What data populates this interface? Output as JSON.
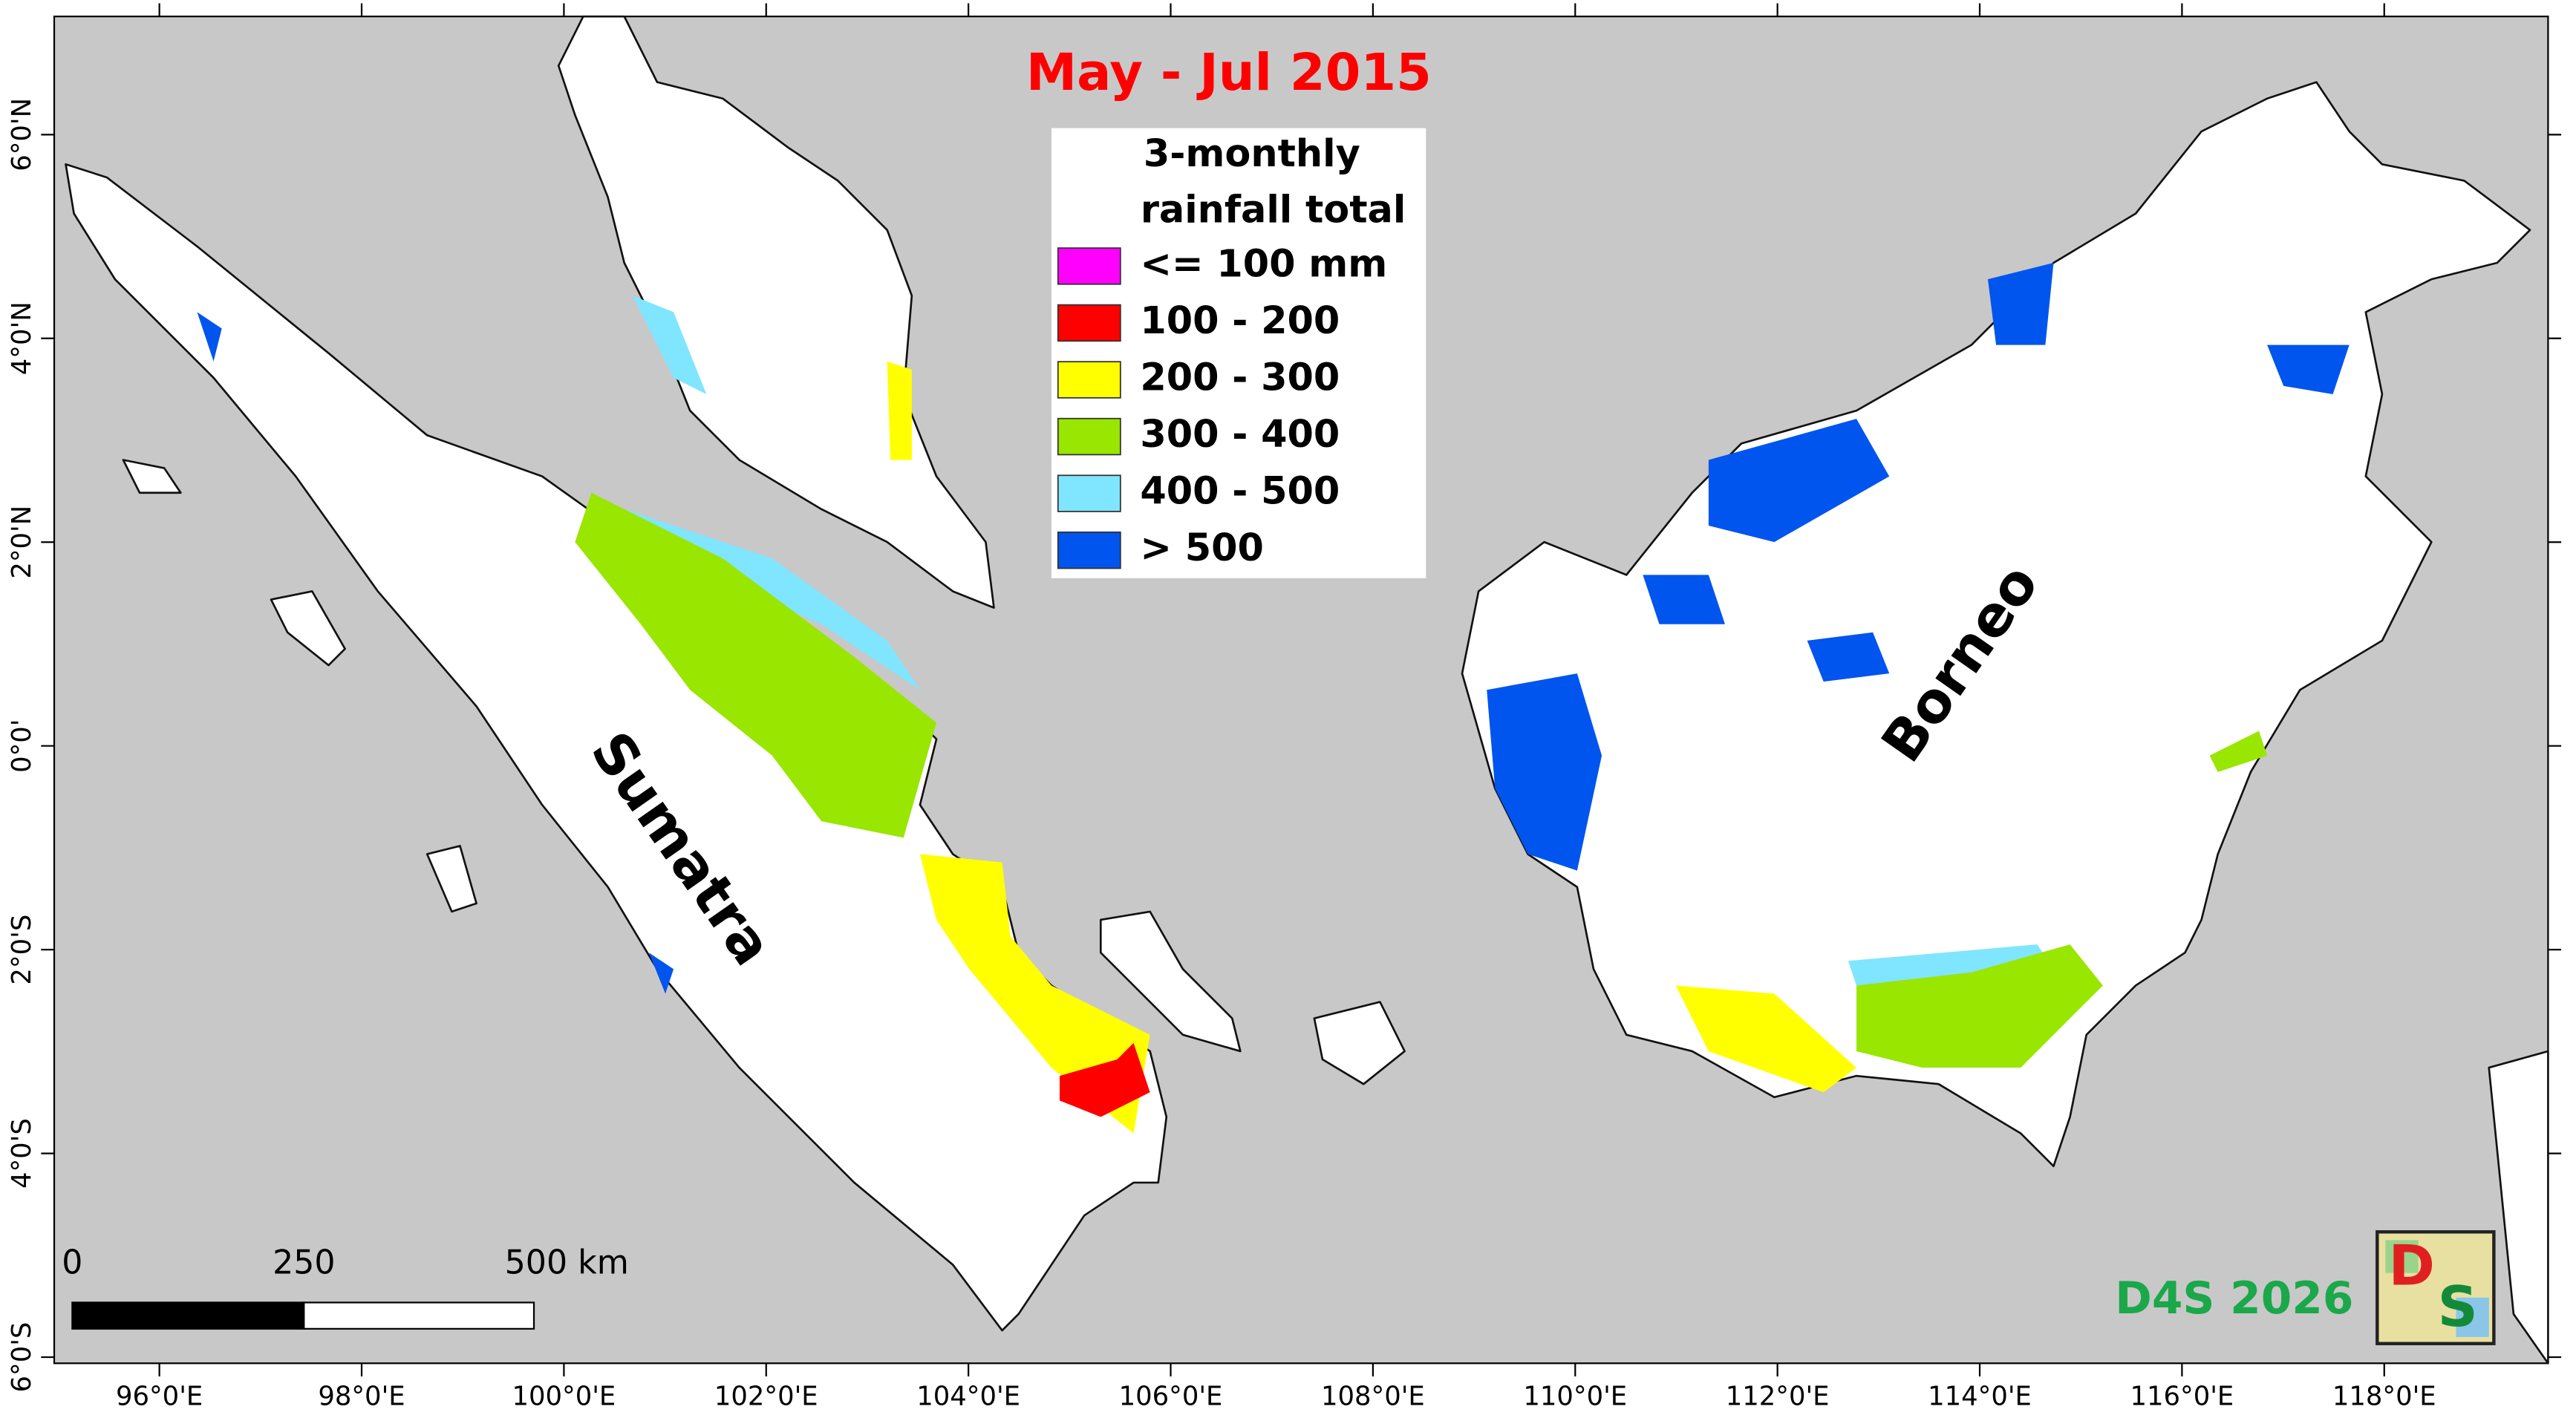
{
  "title": "May - Jul 2015",
  "legend": {
    "title": [
      "3-monthly",
      "rainfall total"
    ],
    "items": [
      {
        "label": "<= 100 mm",
        "color": "#ff00ff"
      },
      {
        "label": "100 - 200",
        "color": "#ff0000"
      },
      {
        "label": "200 - 300",
        "color": "#ffff00"
      },
      {
        "label": "300 - 400",
        "color": "#99e600"
      },
      {
        "label": "400 - 500",
        "color": "#80e5ff"
      },
      {
        "label": "> 500",
        "color": "#0055ee"
      }
    ]
  },
  "labels": {
    "sumatra": "Sumatra",
    "borneo": "Borneo"
  },
  "scale_bar": {
    "labels": [
      "0",
      "250",
      "500 km"
    ]
  },
  "credit": "D4S 2026",
  "logo": {
    "letters": [
      "D",
      "S"
    ]
  },
  "map": {
    "lon_lim": [
      94.96,
      119.62
    ],
    "lat_lim": [
      7.16,
      -6.06
    ],
    "lon_ticks": [
      {
        "value": 96,
        "label": "96°0'E"
      },
      {
        "value": 98,
        "label": "98°0'E"
      },
      {
        "value": 100,
        "label": "100°0'E"
      },
      {
        "value": 102,
        "label": "102°0'E"
      },
      {
        "value": 104,
        "label": "104°0'E"
      },
      {
        "value": 106,
        "label": "106°0'E"
      },
      {
        "value": 108,
        "label": "108°0'E"
      },
      {
        "value": 110,
        "label": "110°0'E"
      },
      {
        "value": 112,
        "label": "112°0'E"
      },
      {
        "value": 114,
        "label": "114°0'E"
      },
      {
        "value": 116,
        "label": "116°0'E"
      },
      {
        "value": 118,
        "label": "118°0'E"
      }
    ],
    "lat_ticks": [
      {
        "value": 6,
        "label": "6°0'N"
      },
      {
        "value": 4,
        "label": "4°0'N"
      },
      {
        "value": 2,
        "label": "2°0'N"
      },
      {
        "value": 0,
        "label": "0°0'"
      },
      {
        "value": -2,
        "label": "2°0'S"
      },
      {
        "value": -4,
        "label": "4°0'S"
      },
      {
        "value": -6,
        "label": "6°0'S"
      }
    ]
  }
}
